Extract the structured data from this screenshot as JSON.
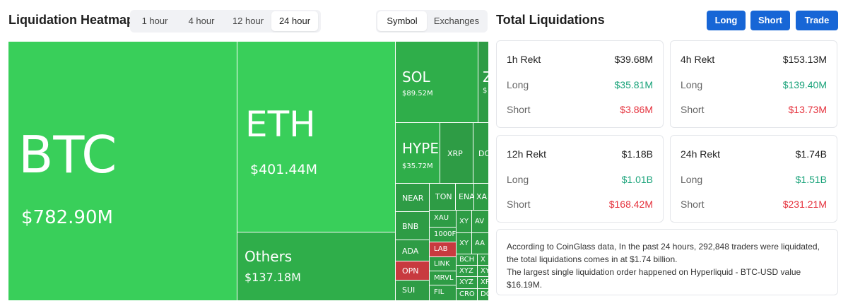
{
  "heatmap": {
    "title": "Liquidation Heatmap",
    "time_options": [
      "1 hour",
      "4 hour",
      "12 hour",
      "24 hour"
    ],
    "active_time": "24 hour",
    "view_options": [
      "Symbol",
      "Exchanges"
    ],
    "active_view": "Symbol",
    "cells": {
      "btc": {
        "symbol": "BTC",
        "value": "$782.90M"
      },
      "eth": {
        "symbol": "ETH",
        "value": "$401.44M"
      },
      "others": {
        "symbol": "Others",
        "value": "$137.18M"
      },
      "sol": {
        "symbol": "SOL",
        "value": "$89.52M"
      },
      "z": {
        "symbol": "Z",
        "value": "$"
      },
      "hype": {
        "symbol": "HYPE",
        "value": "$35.72M"
      },
      "xrp": {
        "symbol": "XRP"
      },
      "do": {
        "symbol": "DO"
      },
      "near": {
        "symbol": "NEAR"
      },
      "bnb": {
        "symbol": "BNB"
      },
      "ada": {
        "symbol": "ADA"
      },
      "opn": {
        "symbol": "OPN"
      },
      "sui": {
        "symbol": "SUI"
      },
      "ton": {
        "symbol": "TON"
      },
      "ena": {
        "symbol": "ENA"
      },
      "xa": {
        "symbol": "XA"
      },
      "xau": {
        "symbol": "XAU"
      },
      "k1000": {
        "symbol": "1000F"
      },
      "lab": {
        "symbol": "LAB"
      },
      "link": {
        "symbol": "LINK"
      },
      "mrvl": {
        "symbol": "MRVL"
      },
      "fil": {
        "symbol": "FIL"
      },
      "xy1": {
        "symbol": "XY"
      },
      "av": {
        "symbol": "AV"
      },
      "xy2": {
        "symbol": "XY"
      },
      "aa": {
        "symbol": "AA"
      },
      "bch": {
        "symbol": "BCH"
      },
      "xyz1": {
        "symbol": "XYZ"
      },
      "xyz2": {
        "symbol": "XYZ"
      },
      "cro": {
        "symbol": "CRO"
      },
      "x1": {
        "symbol": "X"
      },
      "xy3": {
        "symbol": "XY"
      },
      "xp": {
        "symbol": "XP"
      },
      "dc": {
        "symbol": "DC"
      }
    }
  },
  "totals": {
    "title": "Total Liquidations",
    "buttons": {
      "long": "Long",
      "short": "Short",
      "trade": "Trade"
    },
    "long_label": "Long",
    "short_label": "Short",
    "cards": [
      {
        "label": "1h Rekt",
        "total": "$39.68M",
        "long": "$35.81M",
        "short": "$3.86M"
      },
      {
        "label": "4h Rekt",
        "total": "$153.13M",
        "long": "$139.40M",
        "short": "$13.73M"
      },
      {
        "label": "12h Rekt",
        "total": "$1.18B",
        "long": "$1.01B",
        "short": "$168.42M"
      },
      {
        "label": "24h Rekt",
        "total": "$1.74B",
        "long": "$1.51B",
        "short": "$231.21M"
      }
    ],
    "summary_line1": "According to CoinGlass data, In the past 24 hours, 292,848 traders were liquidated, the total liquidations comes in at $1.74 billion.",
    "summary_line2": "The largest single liquidation order happened on Hyperliquid - BTC-USD value $16.19M."
  },
  "colors": {
    "accent": "#1766d6",
    "long_green": "#1aa37a",
    "short_red": "#e5323d",
    "heat_green": "#39cf5a",
    "heat_red": "#c83a3f"
  }
}
